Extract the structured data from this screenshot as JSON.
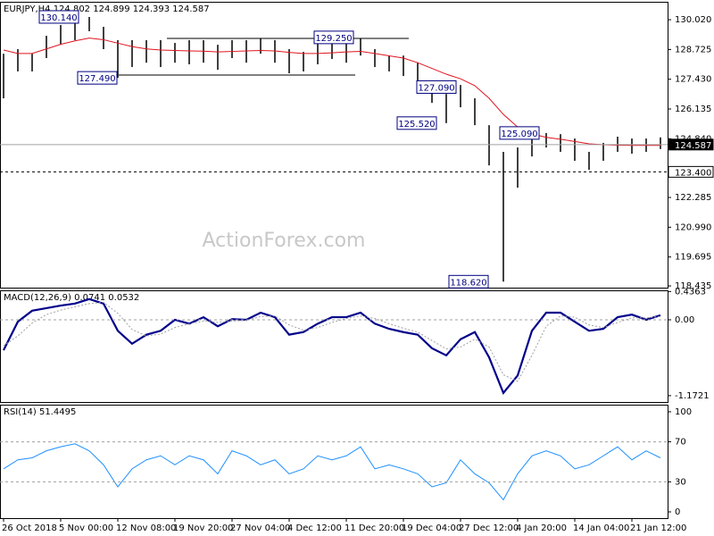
{
  "chart_data": [
    {
      "type": "ohlc",
      "title": "EURJPY,H4  124.802 124.899 124.393 124.587",
      "watermark": "ActionForex.com",
      "color": "#000000",
      "categories": [
        "26 Oct 2018",
        null,
        null,
        null,
        "5 Nov 00:00",
        null,
        null,
        null,
        "12 Nov 08:00",
        null,
        null,
        null,
        "19 Nov 20:00",
        null,
        null,
        null,
        "27 Nov 04:00",
        null,
        null,
        null,
        "4 Dec 12:00",
        null,
        null,
        null,
        "11 Dec 20:00",
        null,
        null,
        null,
        "19 Dec 04:00",
        null,
        null,
        null,
        "27 Dec 12:00",
        null,
        null,
        null,
        "4 Jan 20:00",
        null,
        null,
        null,
        "14 Jan 04:00",
        null,
        null,
        null,
        "21 Jan 12:00",
        null,
        null
      ],
      "high": [
        128.54,
        128.74,
        128.54,
        129.32,
        129.79,
        129.9,
        130.14,
        129.71,
        129.13,
        129.13,
        129.13,
        129.13,
        129.01,
        129.13,
        129.13,
        128.93,
        129.13,
        129.13,
        129.2,
        129.13,
        128.74,
        128.62,
        129.01,
        129.25,
        129.24,
        129.2,
        128.74,
        128.46,
        128.46,
        128.15,
        127.38,
        126.79,
        127.18,
        126.6,
        125.43,
        124.27,
        124.46,
        125.04,
        125.09,
        125.04,
        124.85,
        124.27,
        124.66,
        124.93,
        124.85,
        124.85,
        124.9
      ],
      "low": [
        126.6,
        127.77,
        127.77,
        128.35,
        128.93,
        129.13,
        129.52,
        128.74,
        127.49,
        127.96,
        128.15,
        127.96,
        128.15,
        128.08,
        128.15,
        127.84,
        128.35,
        128.15,
        128.54,
        128.15,
        127.69,
        127.77,
        128.08,
        128.31,
        128.15,
        128.46,
        127.96,
        127.77,
        127.57,
        126.99,
        126.4,
        125.52,
        126.21,
        125.43,
        123.68,
        118.62,
        122.71,
        124.07,
        124.46,
        124.27,
        123.88,
        123.49,
        123.88,
        124.27,
        124.19,
        124.27,
        124.39
      ],
      "lines": [
        {
          "color": "#e0141e",
          "style": "solid",
          "values": [
            128.7,
            128.55,
            128.55,
            128.75,
            128.95,
            129.1,
            129.22,
            129.15,
            129.0,
            128.85,
            128.75,
            128.7,
            128.68,
            128.66,
            128.65,
            128.62,
            128.64,
            128.66,
            128.68,
            128.66,
            128.6,
            128.55,
            128.55,
            128.58,
            128.62,
            128.64,
            128.55,
            128.45,
            128.35,
            128.15,
            127.9,
            127.65,
            127.45,
            127.15,
            126.6,
            125.9,
            125.35,
            125.05,
            124.9,
            124.82,
            124.72,
            124.62,
            124.58,
            124.56,
            124.55,
            124.55,
            124.55
          ]
        }
      ],
      "ylim": [
        118.36,
        130.8
      ],
      "yticks": [
        {
          "value": 130.02,
          "label": "130.020"
        },
        {
          "value": 128.725,
          "label": "128.725"
        },
        {
          "value": 127.43,
          "label": "127.430"
        },
        {
          "value": 126.135,
          "label": "126.135"
        },
        {
          "value": 124.84,
          "label": "124.840"
        },
        {
          "value": 122.285,
          "label": "122.285"
        },
        {
          "value": 120.99,
          "label": "120.990"
        },
        {
          "value": 119.695,
          "label": "119.695"
        },
        {
          "value": 118.435,
          "label": "118.435"
        }
      ],
      "annotations": [
        {
          "value": 130.14,
          "label": "130.140"
        },
        {
          "value": 129.25,
          "label": "129.250"
        },
        {
          "value": 127.49,
          "label": "127.490"
        },
        {
          "value": 127.09,
          "label": "127.090"
        },
        {
          "value": 125.52,
          "label": "125.520"
        },
        {
          "value": 125.09,
          "label": "125.090"
        },
        {
          "value": 118.62,
          "label": "118.620"
        }
      ],
      "last_price": {
        "value": 124.587,
        "label": "124.587"
      },
      "level": {
        "value": 123.4,
        "label": "123.400"
      },
      "grid": false
    },
    {
      "type": "line",
      "title": "MACD(12,26,9) 0.0741 0.0532",
      "lines": [
        {
          "color": "#00008b",
          "style": "bold",
          "values": [
            -0.47,
            -0.03,
            0.14,
            0.18,
            0.22,
            0.25,
            0.32,
            0.25,
            -0.17,
            -0.37,
            -0.23,
            -0.17,
            0,
            -0.06,
            0.04,
            -0.1,
            0.01,
            0,
            0.11,
            0.04,
            -0.23,
            -0.19,
            -0.06,
            0.04,
            0.04,
            0.11,
            -0.06,
            -0.14,
            -0.19,
            -0.23,
            -0.44,
            -0.55,
            -0.3,
            -0.19,
            -0.58,
            -1.13,
            -0.86,
            -0.17,
            0.11,
            0.11,
            -0.03,
            -0.17,
            -0.14,
            0.04,
            0.08,
            0,
            0.07
          ]
        },
        {
          "color": "#a0a0a0",
          "style": "dotted",
          "values": [
            -0.4,
            -0.25,
            -0.05,
            0.08,
            0.15,
            0.2,
            0.25,
            0.27,
            0.1,
            -0.15,
            -0.25,
            -0.22,
            -0.12,
            -0.06,
            -0.02,
            -0.04,
            -0.02,
            -0.01,
            0.05,
            0.06,
            -0.08,
            -0.16,
            -0.12,
            -0.04,
            0.02,
            0.06,
            0.02,
            -0.06,
            -0.13,
            -0.19,
            -0.32,
            -0.45,
            -0.42,
            -0.3,
            -0.42,
            -0.85,
            -0.95,
            -0.55,
            -0.1,
            0.06,
            0.04,
            -0.08,
            -0.12,
            -0.04,
            0.03,
            0.03,
            0.05
          ]
        }
      ],
      "ylim": [
        -1.27,
        0.455
      ],
      "yticks": [
        0.4363,
        {
          "value": 0,
          "label": "0.00"
        },
        -1.1721
      ],
      "grid": "dashed"
    },
    {
      "type": "line",
      "title": "RSI(14) 51.4495",
      "lines": [
        {
          "color": "#1e90ff",
          "style": "solid",
          "values": [
            43,
            52,
            54,
            61,
            65,
            68,
            61,
            47,
            25,
            43,
            52,
            56,
            47,
            56,
            52,
            38,
            61,
            56,
            47,
            52,
            38,
            43,
            56,
            52,
            56,
            65,
            43,
            47,
            43,
            38,
            25,
            29,
            52,
            38,
            29,
            12,
            38,
            56,
            61,
            56,
            43,
            47,
            56,
            65,
            52,
            61,
            54
          ]
        }
      ],
      "ylim": [
        -6.25,
        107.1
      ],
      "yticks": [
        100,
        70,
        30,
        0
      ],
      "grid": "dashed"
    }
  ]
}
